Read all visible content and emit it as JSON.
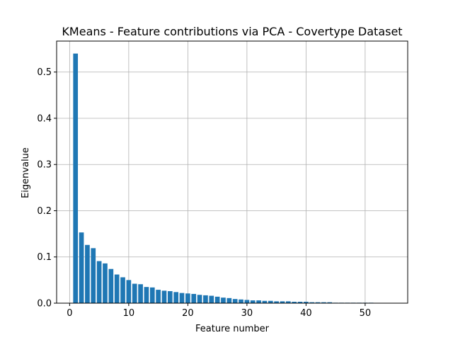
{
  "chart_data": {
    "type": "bar",
    "title": "KMeans - Feature contributions via PCA - Covertype Dataset",
    "xlabel": "Feature number",
    "ylabel": "Eigenvalue",
    "xlim": [
      -2.2,
      57.2
    ],
    "ylim": [
      0,
      0.567
    ],
    "xticks": [
      0,
      10,
      20,
      30,
      40,
      50
    ],
    "yticks": [
      0.0,
      0.1,
      0.2,
      0.3,
      0.4,
      0.5
    ],
    "xtick_labels": [
      "0",
      "10",
      "20",
      "30",
      "40",
      "50"
    ],
    "ytick_labels": [
      "0.0",
      "0.1",
      "0.2",
      "0.3",
      "0.4",
      "0.5"
    ],
    "grid": true,
    "bar_color": "#1f77b4",
    "x": [
      1,
      2,
      3,
      4,
      5,
      6,
      7,
      8,
      9,
      10,
      11,
      12,
      13,
      14,
      15,
      16,
      17,
      18,
      19,
      20,
      21,
      22,
      23,
      24,
      25,
      26,
      27,
      28,
      29,
      30,
      31,
      32,
      33,
      34,
      35,
      36,
      37,
      38,
      39,
      40,
      41,
      42,
      43,
      44,
      45,
      46,
      47,
      48,
      49,
      50,
      51,
      52,
      53,
      54
    ],
    "values": [
      0.54,
      0.153,
      0.126,
      0.119,
      0.091,
      0.086,
      0.074,
      0.062,
      0.056,
      0.05,
      0.042,
      0.041,
      0.035,
      0.034,
      0.029,
      0.027,
      0.026,
      0.024,
      0.022,
      0.021,
      0.02,
      0.018,
      0.017,
      0.016,
      0.014,
      0.012,
      0.011,
      0.009,
      0.008,
      0.007,
      0.006,
      0.006,
      0.005,
      0.005,
      0.004,
      0.004,
      0.004,
      0.003,
      0.003,
      0.003,
      0.002,
      0.002,
      0.002,
      0.002,
      0.001,
      0.001,
      0.001,
      0.001,
      0.001,
      0.001,
      0.001,
      0.0005,
      0.0005,
      0.0005
    ]
  }
}
